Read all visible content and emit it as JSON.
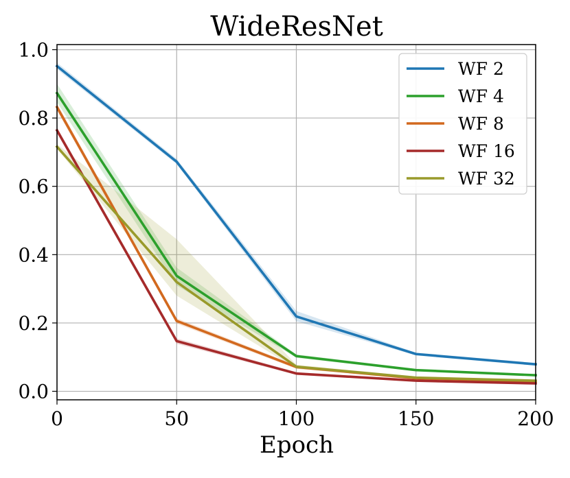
{
  "chart_data": {
    "type": "line",
    "title": "WideResNet",
    "xlabel": "Epoch",
    "ylabel": "",
    "xlim": [
      0,
      200
    ],
    "ylim": [
      -0.025,
      1.015
    ],
    "xticks": [
      0,
      50,
      100,
      150,
      200
    ],
    "xtick_labels": [
      "0",
      "50",
      "100",
      "150",
      "200"
    ],
    "yticks": [
      0.0,
      0.2,
      0.4,
      0.6,
      0.8,
      1.0
    ],
    "ytick_labels": [
      "0.0",
      "0.2",
      "0.4",
      "0.6",
      "0.8",
      "1.0"
    ],
    "grid": true,
    "legend_position": "top-right",
    "x": [
      0,
      50,
      100,
      150,
      200
    ],
    "series": [
      {
        "name": "WF 2",
        "color": "#1f77b4",
        "values": [
          0.952,
          0.672,
          0.219,
          0.109,
          0.079
        ],
        "lower": [
          0.943,
          0.665,
          0.205,
          0.105,
          0.075
        ],
        "upper": [
          0.962,
          0.68,
          0.235,
          0.113,
          0.083
        ]
      },
      {
        "name": "WF 4",
        "color": "#2ca02c",
        "values": [
          0.873,
          0.338,
          0.103,
          0.062,
          0.047
        ],
        "lower": [
          0.846,
          0.31,
          0.098,
          0.059,
          0.045
        ],
        "upper": [
          0.9,
          0.362,
          0.108,
          0.065,
          0.049
        ]
      },
      {
        "name": "WF 8",
        "color": "#d2691e",
        "values": [
          0.832,
          0.206,
          0.071,
          0.038,
          0.029
        ],
        "lower": [
          0.822,
          0.198,
          0.066,
          0.036,
          0.027
        ],
        "upper": [
          0.842,
          0.214,
          0.076,
          0.04,
          0.031
        ]
      },
      {
        "name": "WF 16",
        "color": "#a52a2a",
        "values": [
          0.764,
          0.147,
          0.052,
          0.031,
          0.023
        ],
        "lower": [
          0.756,
          0.139,
          0.048,
          0.029,
          0.021
        ],
        "upper": [
          0.772,
          0.155,
          0.056,
          0.033,
          0.025
        ]
      },
      {
        "name": "WF 32",
        "color": "#999a2b",
        "values": [
          0.716,
          0.32,
          0.072,
          0.04,
          0.031
        ],
        "lower": [
          0.71,
          0.28,
          0.066,
          0.037,
          0.028
        ],
        "upper": [
          0.724,
          0.445,
          0.078,
          0.043,
          0.034
        ]
      }
    ]
  }
}
